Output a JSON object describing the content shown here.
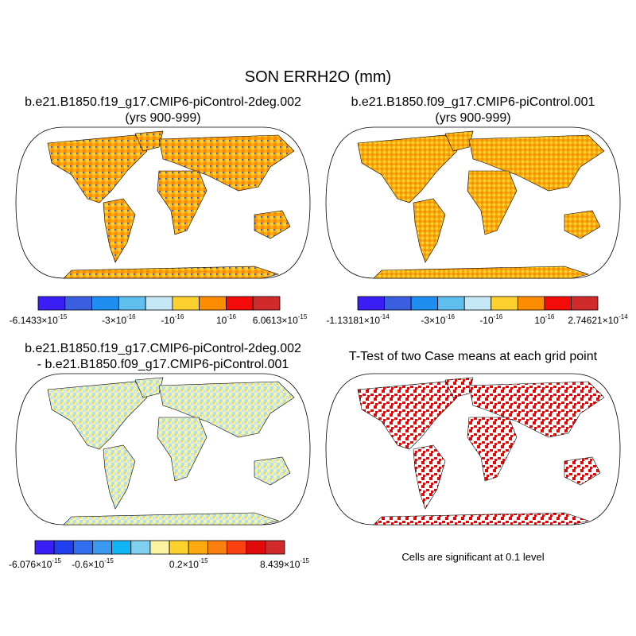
{
  "title": "SON ERRH2O (mm)",
  "panels": [
    {
      "title": [
        "b.e21.B1850.f19_g17.CMIP6-piControl-2deg.002",
        "(yrs 900-999)"
      ],
      "colorbar": {
        "colors": [
          "#3a1ef5",
          "#3a5fe0",
          "#1e8ff0",
          "#5fbfef",
          "#c5e6f5",
          "#fdd02e",
          "#fc8c00",
          "#f50a0a",
          "#d02a2a"
        ],
        "labels": [
          {
            "text": "-6.1433×10",
            "exponent": "-15"
          },
          {
            "text": "-3×10",
            "exponent": "-16"
          },
          {
            "text": "-10",
            "exponent": "-16"
          },
          {
            "text": "10",
            "exponent": "-16"
          },
          {
            "text": "6.0613×10",
            "exponent": "-15"
          }
        ]
      }
    },
    {
      "title": [
        "b.e21.B1850.f09_g17.CMIP6-piControl.001",
        "(yrs 900-999)"
      ],
      "colorbar": {
        "colors": [
          "#3a1ef5",
          "#3a5fe0",
          "#1e8ff0",
          "#5fbfef",
          "#c5e6f5",
          "#fdd02e",
          "#fc8c00",
          "#f50a0a",
          "#d02a2a"
        ],
        "labels": [
          {
            "text": "-1.13181×10",
            "exponent": "-14"
          },
          {
            "text": "-3×10",
            "exponent": "-16"
          },
          {
            "text": "-10",
            "exponent": "-16"
          },
          {
            "text": "10",
            "exponent": "-16"
          },
          {
            "text": "2.74621×10",
            "exponent": "-14"
          }
        ]
      }
    },
    {
      "title": [
        "b.e21.B1850.f19_g17.CMIP6-piControl-2deg.002",
        "- b.e21.B1850.f09_g17.CMIP6-piControl.001"
      ],
      "colorbar": {
        "colors": [
          "#3a1ef5",
          "#2040f0",
          "#3070f0",
          "#3a9af0",
          "#10b5f5",
          "#80d0ef",
          "#fbf3a0",
          "#fcd22e",
          "#fcaa10",
          "#f98010",
          "#f84010",
          "#e00a0a",
          "#d02a2a"
        ],
        "labels": [
          {
            "text": "-6.076×10",
            "exponent": "-15"
          },
          {
            "text": "-0.6×10",
            "exponent": "-15"
          },
          {
            "text": "0.2×10",
            "exponent": "-15"
          },
          {
            "text": "8.439×10",
            "exponent": "-15"
          }
        ]
      }
    },
    {
      "title": [
        "T-Test of two Case means at each grid point"
      ],
      "note": "Cells are significant at 0.1 level"
    }
  ]
}
